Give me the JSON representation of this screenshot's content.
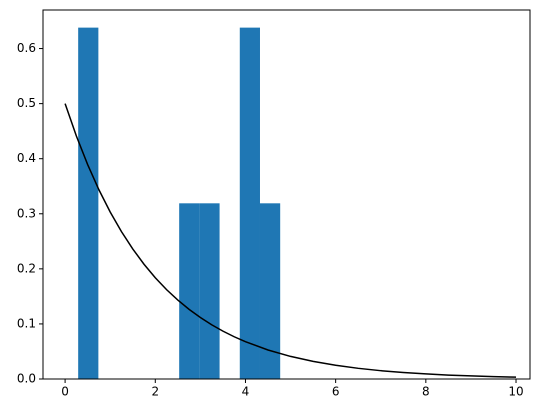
{
  "chart_data": {
    "type": "histogram",
    "bins": [
      0.29,
      0.738,
      1.186,
      1.634,
      2.082,
      2.53,
      2.978,
      3.426,
      3.874,
      4.322,
      4.77
    ],
    "values": [
      0.638,
      0,
      0,
      0,
      0,
      0.319,
      0.319,
      0,
      0.638,
      0.319
    ],
    "color": "#1f77b4",
    "line": {
      "color": "#000000",
      "x": [
        0,
        0.25,
        0.5,
        0.75,
        1,
        1.25,
        1.5,
        1.75,
        2,
        2.25,
        2.5,
        2.75,
        3,
        3.25,
        3.5,
        3.75,
        4,
        4.5,
        5,
        5.5,
        6,
        6.5,
        7,
        7.5,
        8,
        8.5,
        9,
        9.5,
        10
      ],
      "values": [
        0.5,
        0.4412,
        0.3894,
        0.3436,
        0.3033,
        0.2676,
        0.2362,
        0.2084,
        0.1839,
        0.1623,
        0.1433,
        0.1264,
        0.1116,
        0.0985,
        0.0869,
        0.0767,
        0.0677,
        0.0527,
        0.041,
        0.032,
        0.0249,
        0.0194,
        0.0151,
        0.0118,
        0.0092,
        0.0071,
        0.0056,
        0.0043,
        0.0034
      ]
    },
    "xlim": [
      -0.49,
      10.31
    ],
    "ylim": [
      0,
      0.67
    ],
    "xticks": [
      0,
      2,
      4,
      6,
      8,
      10
    ],
    "yticks": [
      {
        "value": 0,
        "label": "0.0"
      },
      0.1,
      0.2,
      0.3,
      0.4,
      0.5,
      0.6
    ]
  }
}
